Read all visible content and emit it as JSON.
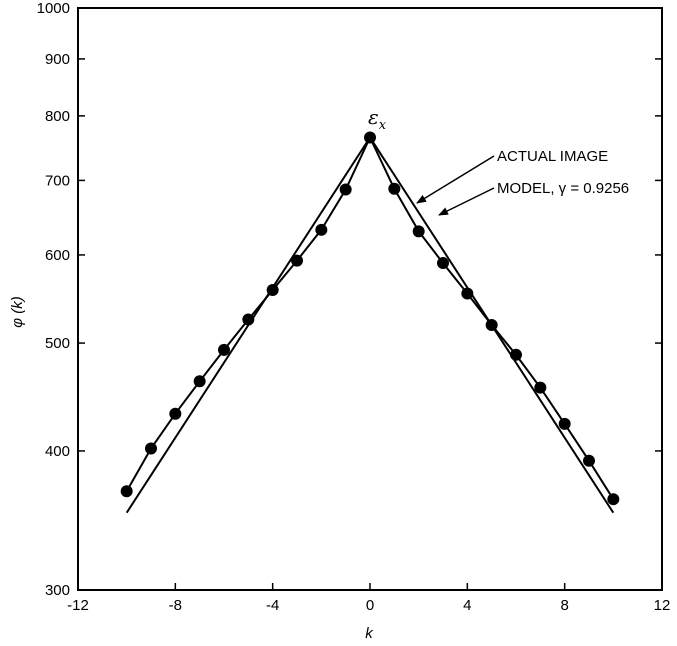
{
  "chart_data": {
    "type": "line",
    "xlabel": "k",
    "ylabel": "φ (k)",
    "xlim": [
      -12,
      12
    ],
    "ylim": [
      300,
      1000
    ],
    "y_scale": "log",
    "x_ticks": [
      "-12",
      "-8",
      "-4",
      "0",
      "4",
      "8",
      "12"
    ],
    "x_tick_values": [
      -12,
      -8,
      -4,
      0,
      4,
      8,
      12
    ],
    "y_ticks": [
      "300",
      "400",
      "500",
      "600",
      "700",
      "800",
      "900",
      "1000"
    ],
    "y_tick_values": [
      300,
      400,
      500,
      600,
      700,
      800,
      900,
      1000
    ],
    "peak_label": "ε",
    "peak_label_sub": "x",
    "series": [
      {
        "name": "ACTUAL IMAGE",
        "style": "line-with-markers",
        "x": [
          -10,
          -9,
          -8,
          -7,
          -6,
          -5,
          -4,
          -3,
          -2,
          -1,
          0,
          1,
          2,
          3,
          4,
          5,
          6,
          7,
          8,
          9,
          10
        ],
        "y": [
          368,
          402,
          432,
          462,
          493,
          525,
          558,
          593,
          632,
          687,
          765,
          688,
          630,
          590,
          554,
          519,
          488,
          456,
          423,
          392,
          362
        ]
      },
      {
        "name": "MODEL, γ = 0.9256",
        "style": "line",
        "x": [
          -10,
          0,
          10
        ],
        "y": [
          352,
          765,
          352
        ]
      }
    ],
    "annotations": [
      {
        "text": "ACTUAL IMAGE",
        "arrow_to_series": "ACTUAL IMAGE"
      },
      {
        "text": "MODEL, γ = 0.9256",
        "arrow_to_series": "MODEL, γ = 0.9256"
      }
    ]
  }
}
